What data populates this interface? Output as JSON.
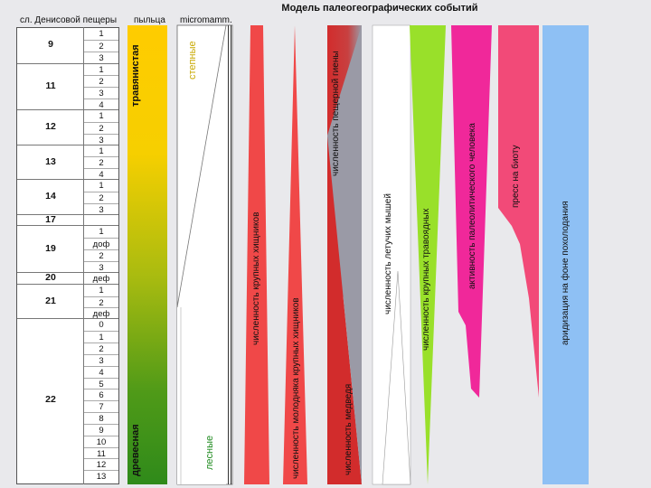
{
  "title": "Модель палеогеографических событий",
  "headers": {
    "layers": "сл. Денисовой пещеры",
    "pollen": "пыльца",
    "micromamm": "micromamm."
  },
  "strata": [
    {
      "layer": "9",
      "subs": [
        "1",
        "2",
        "3"
      ]
    },
    {
      "layer": "11",
      "subs": [
        "1",
        "2",
        "3",
        "4"
      ]
    },
    {
      "layer": "12",
      "subs": [
        "1",
        "2",
        "3"
      ]
    },
    {
      "layer": "13",
      "subs": [
        "1",
        "2",
        "4"
      ]
    },
    {
      "layer": "14",
      "subs": [
        "1",
        "2",
        "3"
      ]
    },
    {
      "layer": "17",
      "subs": []
    },
    {
      "layer": "19",
      "subs": [
        "1",
        "доф",
        "2",
        "3"
      ]
    },
    {
      "layer": "20",
      "subs": [
        "деф"
      ]
    },
    {
      "layer": "21",
      "subs": [
        "1",
        "2",
        "деф"
      ]
    },
    {
      "layer": "22",
      "subs": [
        "0",
        "1",
        "2",
        "3",
        "4",
        "5",
        "6",
        "7",
        "8",
        "9",
        "10",
        "11",
        "12",
        "13"
      ]
    }
  ],
  "columns": {
    "pollen_top": "травянистая",
    "pollen_bottom": "древесная",
    "mamm_top": "степные",
    "mamm_bottom": "лесные",
    "predators": "численность крупных хищников",
    "predator_young": "численность молодняка крупных хищников",
    "cave_hyena": "численность пещерной гиены",
    "bear": "численность медведя",
    "bats": "численность летучих мышей",
    "herbivores": "численность крупных травоядных",
    "human": "активность палеолитического человека",
    "biota": "пресс на биоту",
    "aridization": "аридизация на фоне похолодания"
  },
  "colors": {
    "predator_red": "#f04848",
    "hyena_red": "#d22c2c",
    "herbivore_green": "#99e02a",
    "human_magenta": "#f0289a",
    "biota_pink": "#f24a78",
    "aridization_blue": "#8ec0f4",
    "pollen_yellow": "#ffcc00",
    "pollen_green": "#2f8a1a",
    "mamm_yellow_text": "#c8a800",
    "mamm_green_text": "#1e8a1e"
  }
}
